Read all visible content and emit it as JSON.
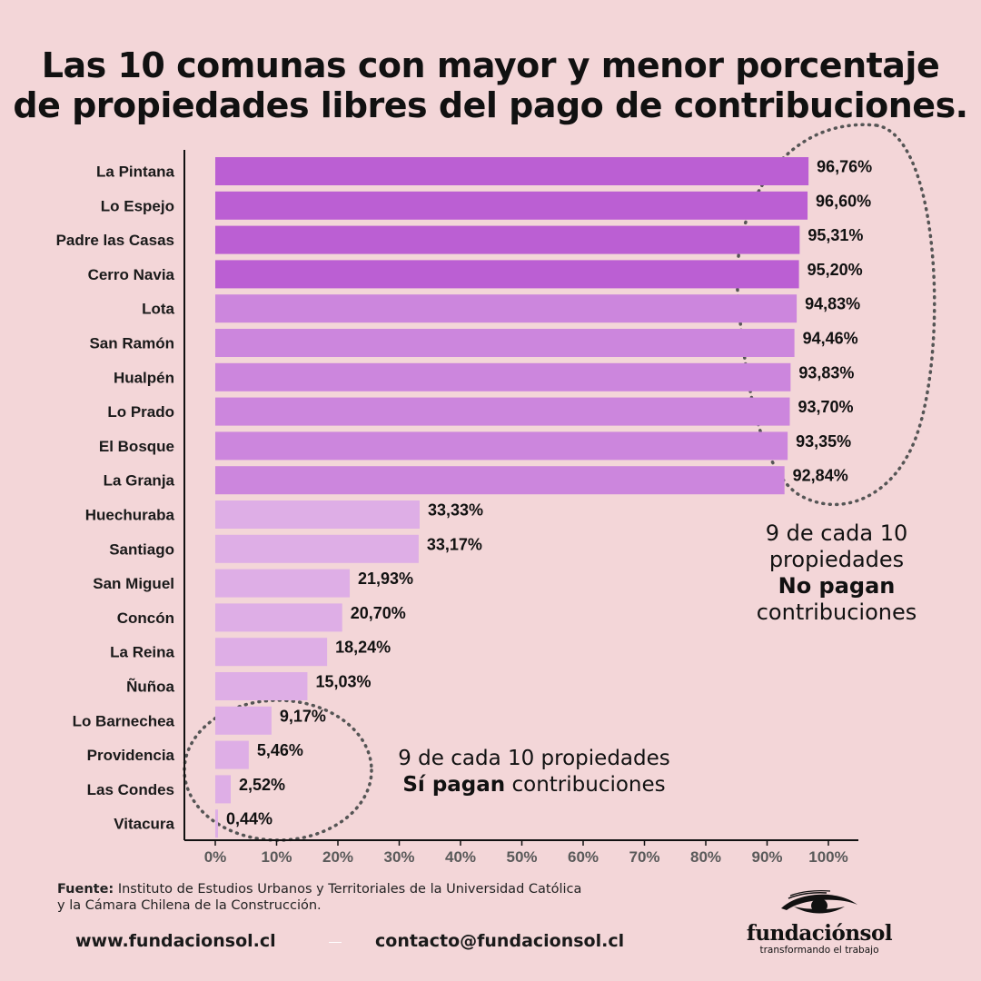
{
  "title": {
    "line1": "Las 10 comunas con mayor y menor porcentaje",
    "line2": "de propiedades libres del pago de contribuciones."
  },
  "chart_data": {
    "type": "bar",
    "orientation": "horizontal",
    "categories": [
      "La Pintana",
      "Lo Espejo",
      "Padre las Casas",
      "Cerro Navia",
      "Lota",
      "San Ramón",
      "Hualpén",
      "Lo Prado",
      "El Bosque",
      "La Granja",
      "Huechuraba",
      "Santiago",
      "San Miguel",
      "Concón",
      "La Reina",
      "Ñuñoa",
      "Lo Barnechea",
      "Providencia",
      "Las Condes",
      "Vitacura"
    ],
    "values": [
      96.76,
      96.6,
      95.31,
      95.2,
      94.83,
      94.46,
      93.83,
      93.7,
      93.35,
      92.84,
      33.33,
      33.17,
      21.93,
      20.7,
      18.24,
      15.03,
      9.17,
      5.46,
      2.52,
      0.44
    ],
    "value_labels": [
      "96,76%",
      "96,60%",
      "95,31%",
      "95,20%",
      "94,83%",
      "94,46%",
      "93,83%",
      "93,70%",
      "93,35%",
      "92,84%",
      "33,33%",
      "33,17%",
      "21,93%",
      "20,70%",
      "18,24%",
      "15,03%",
      "9,17%",
      "5,46%",
      "2,52%",
      "0,44%"
    ],
    "bar_colors": [
      "#bb5fd3",
      "#bb5fd3",
      "#bb5fd3",
      "#bb5fd3",
      "#cc86dd",
      "#cc86dd",
      "#cc86dd",
      "#cc86dd",
      "#cc86dd",
      "#cc86dd",
      "#deaee6",
      "#deaee6",
      "#deaee6",
      "#deaee6",
      "#deaee6",
      "#deaee6",
      "#deaee6",
      "#deaee6",
      "#deaee6",
      "#deaee6"
    ],
    "xlim": [
      0,
      100
    ],
    "x_ticks": [
      0,
      10,
      20,
      30,
      40,
      50,
      60,
      70,
      80,
      90,
      100
    ],
    "x_tick_labels": [
      "0%",
      "10%",
      "20%",
      "30%",
      "40%",
      "50%",
      "60%",
      "70%",
      "80%",
      "90%",
      "100%"
    ],
    "xlabel": "",
    "ylabel": "",
    "grid": false
  },
  "annotations": {
    "top": {
      "line1": "9 de cada 10",
      "line2": "propiedades",
      "line3_bold": "No pagan",
      "line4": "contribuciones"
    },
    "bottom": {
      "line1": "9 de cada 10 propiedades",
      "line2_bold": "Sí pagan",
      "line2_rest": " contribuciones"
    }
  },
  "source": {
    "label": "Fuente:",
    "line1": " Instituto de Estudios Urbanos y Territoriales de la Universidad Católica",
    "line2": "y la Cámara Chilena de la Construcción."
  },
  "footer": {
    "website": "www.fundacionsol.cl",
    "email": "contacto@fundacionsol.cl"
  },
  "logo": {
    "name": "fundaciónsol",
    "tagline": "transformando el trabajo"
  },
  "colors": {
    "background": "#f3d6d8",
    "bar_top": "#bb5fd3",
    "bar_mid": "#cc86dd",
    "bar_low": "#deaee6"
  }
}
